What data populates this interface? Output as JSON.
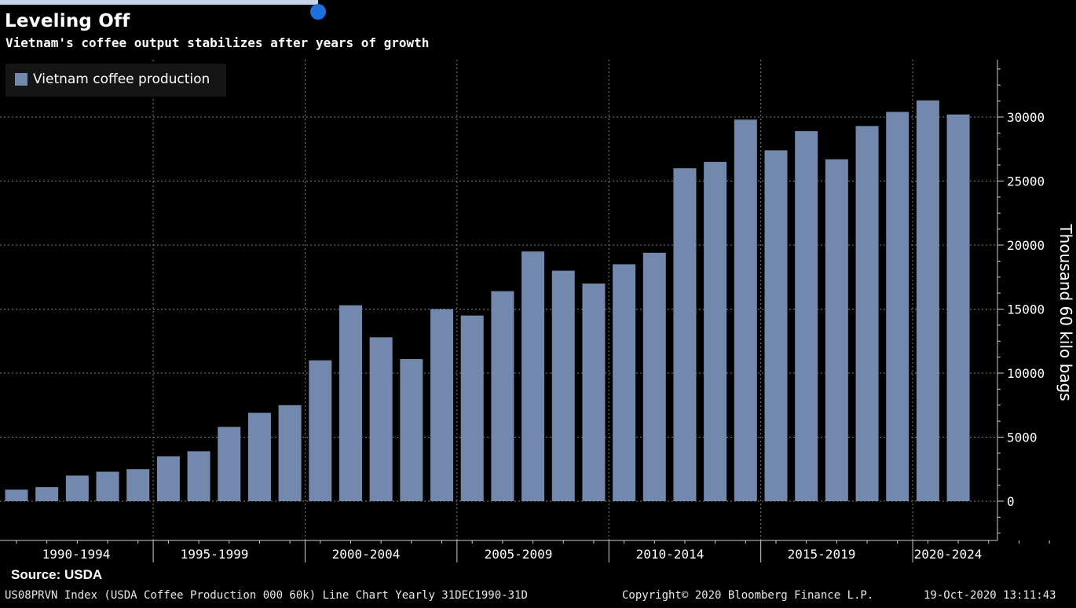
{
  "title": "Leveling Off",
  "subtitle": "Vietnam's coffee output stabilizes after years of growth",
  "source": "Source: USDA",
  "footer": {
    "index": "US08PRVN Index (USDA Coffee Production 000 60k) Line Chart  Yearly 31DEC1990-31D",
    "copyright": "Copyright© 2020 Bloomberg Finance L.P.",
    "timestamp": "19-Oct-2020 13:11:43"
  },
  "colors": {
    "bar": "#7289ad",
    "background": "#000000",
    "grid": "#808080"
  },
  "chart_data": {
    "type": "bar",
    "title": "Leveling Off",
    "subtitle": "Vietnam's coffee output stabilizes after years of growth",
    "ylabel": "Thousand 60 kilo bags",
    "xlabel": "",
    "ylim": [
      0,
      30000
    ],
    "yticks": [
      0,
      5000,
      10000,
      15000,
      20000,
      25000,
      30000
    ],
    "x_period_labels": [
      "1990-1994",
      "1995-1999",
      "2000-2004",
      "2005-2009",
      "2010-2014",
      "2015-2019",
      "2020-2024"
    ],
    "years": [
      1990,
      1991,
      1992,
      1993,
      1994,
      1995,
      1996,
      1997,
      1998,
      1999,
      2000,
      2001,
      2002,
      2003,
      2004,
      2005,
      2006,
      2007,
      2008,
      2009,
      2010,
      2011,
      2012,
      2013,
      2014,
      2015,
      2016,
      2017,
      2018,
      2019,
      2020,
      2021,
      2022,
      2023,
      2024
    ],
    "series": [
      {
        "name": "Vietnam coffee production",
        "values": [
          900,
          1100,
          2000,
          2300,
          2500,
          3500,
          3900,
          5800,
          6900,
          7500,
          11000,
          15300,
          12800,
          11100,
          15000,
          14500,
          16400,
          19500,
          18000,
          17000,
          18500,
          19400,
          26000,
          26500,
          29800,
          27400,
          28900,
          26700,
          29300,
          30400,
          31300,
          30200
        ]
      }
    ],
    "grid": true,
    "legend_position": "top-left"
  }
}
